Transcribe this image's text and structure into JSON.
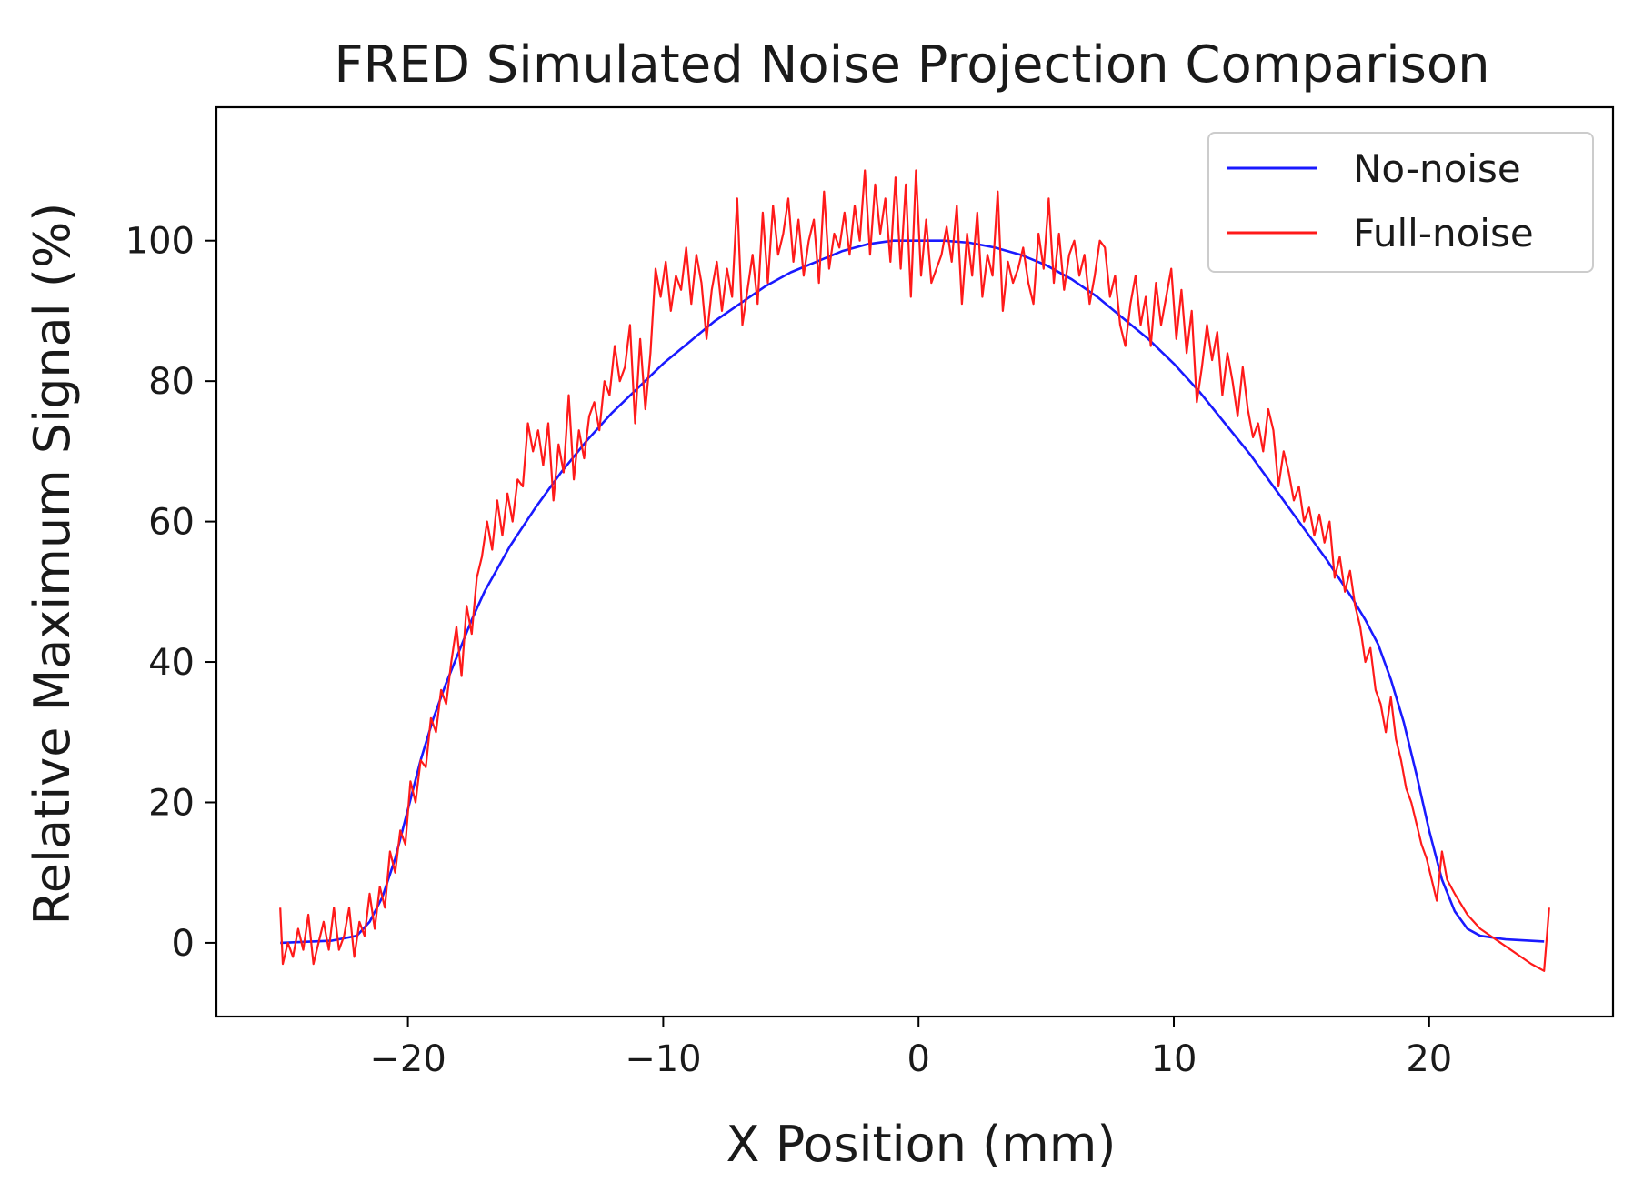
{
  "chart_data": {
    "type": "line",
    "title": "FRED Simulated Noise Projection Comparison",
    "xlabel": "X Position (mm)",
    "ylabel": "Relative Maximum Signal (%)",
    "xlim": [
      -27.5,
      27.2
    ],
    "ylim": [
      -10.5,
      119
    ],
    "xticks": [
      -20,
      -10,
      0,
      10,
      20
    ],
    "xtick_labels": [
      "−20",
      "−10",
      "0",
      "10",
      "20"
    ],
    "yticks": [
      0,
      20,
      40,
      60,
      80,
      100
    ],
    "ytick_labels": [
      "0",
      "20",
      "40",
      "60",
      "80",
      "100"
    ],
    "grid": false,
    "legend_position": "top-right",
    "series": [
      {
        "name": "No-noise",
        "color": "#1a1aff",
        "points": [
          [
            -25,
            0
          ],
          [
            -23,
            0.3
          ],
          [
            -22,
            1
          ],
          [
            -21.5,
            3
          ],
          [
            -21,
            6.5
          ],
          [
            -20.5,
            12
          ],
          [
            -20,
            19
          ],
          [
            -19.5,
            26
          ],
          [
            -19,
            32
          ],
          [
            -18.5,
            37
          ],
          [
            -18,
            41.5
          ],
          [
            -17.5,
            46
          ],
          [
            -17,
            50
          ],
          [
            -16,
            56.5
          ],
          [
            -15,
            62
          ],
          [
            -14,
            67
          ],
          [
            -13,
            71.5
          ],
          [
            -12,
            75.5
          ],
          [
            -11,
            79
          ],
          [
            -10,
            82.5
          ],
          [
            -9,
            85.5
          ],
          [
            -8,
            88.5
          ],
          [
            -7,
            91
          ],
          [
            -6,
            93.5
          ],
          [
            -5,
            95.5
          ],
          [
            -4,
            97
          ],
          [
            -3,
            98.5
          ],
          [
            -2,
            99.5
          ],
          [
            -1,
            100
          ],
          [
            0,
            100
          ],
          [
            1,
            100
          ],
          [
            2,
            99.7
          ],
          [
            3,
            99
          ],
          [
            4,
            98
          ],
          [
            5,
            96.5
          ],
          [
            6,
            94.5
          ],
          [
            7,
            92
          ],
          [
            8,
            89
          ],
          [
            9,
            86
          ],
          [
            10,
            82.5
          ],
          [
            11,
            78.5
          ],
          [
            12,
            74
          ],
          [
            13,
            69.5
          ],
          [
            14,
            64.5
          ],
          [
            15,
            59.5
          ],
          [
            16,
            54.5
          ],
          [
            17,
            49
          ],
          [
            17.5,
            46
          ],
          [
            18,
            42.5
          ],
          [
            18.5,
            37.5
          ],
          [
            19,
            31.5
          ],
          [
            19.5,
            24
          ],
          [
            20,
            16
          ],
          [
            20.5,
            9
          ],
          [
            21,
            4.5
          ],
          [
            21.5,
            2
          ],
          [
            22,
            1
          ],
          [
            23,
            0.5
          ],
          [
            24.5,
            0.2
          ]
        ]
      },
      {
        "name": "Full-noise",
        "color": "#ff1a1a",
        "points": [
          [
            -25,
            5
          ],
          [
            -24.9,
            -3
          ],
          [
            -24.7,
            0
          ],
          [
            -24.5,
            -2
          ],
          [
            -24.3,
            2
          ],
          [
            -24.1,
            -1
          ],
          [
            -23.9,
            4
          ],
          [
            -23.7,
            -3
          ],
          [
            -23.5,
            0
          ],
          [
            -23.3,
            3
          ],
          [
            -23.1,
            -1
          ],
          [
            -22.9,
            5
          ],
          [
            -22.7,
            -1
          ],
          [
            -22.5,
            1
          ],
          [
            -22.3,
            5
          ],
          [
            -22.1,
            -2
          ],
          [
            -21.9,
            3
          ],
          [
            -21.7,
            1
          ],
          [
            -21.5,
            7
          ],
          [
            -21.3,
            2
          ],
          [
            -21.1,
            8
          ],
          [
            -20.9,
            5
          ],
          [
            -20.7,
            13
          ],
          [
            -20.5,
            10
          ],
          [
            -20.3,
            16
          ],
          [
            -20.1,
            14
          ],
          [
            -19.9,
            23
          ],
          [
            -19.7,
            20
          ],
          [
            -19.5,
            26
          ],
          [
            -19.3,
            25
          ],
          [
            -19.1,
            32
          ],
          [
            -18.9,
            30
          ],
          [
            -18.7,
            36
          ],
          [
            -18.5,
            34
          ],
          [
            -18.3,
            40
          ],
          [
            -18.1,
            45
          ],
          [
            -17.9,
            38
          ],
          [
            -17.7,
            48
          ],
          [
            -17.5,
            44
          ],
          [
            -17.3,
            52
          ],
          [
            -17.1,
            55
          ],
          [
            -16.9,
            60
          ],
          [
            -16.7,
            56
          ],
          [
            -16.5,
            63
          ],
          [
            -16.3,
            58
          ],
          [
            -16.1,
            64
          ],
          [
            -15.9,
            60
          ],
          [
            -15.7,
            66
          ],
          [
            -15.5,
            65
          ],
          [
            -15.3,
            74
          ],
          [
            -15.1,
            70
          ],
          [
            -14.9,
            73
          ],
          [
            -14.7,
            68
          ],
          [
            -14.5,
            74
          ],
          [
            -14.3,
            63
          ],
          [
            -14.1,
            71
          ],
          [
            -13.9,
            67
          ],
          [
            -13.7,
            78
          ],
          [
            -13.5,
            66
          ],
          [
            -13.3,
            73
          ],
          [
            -13.1,
            69
          ],
          [
            -12.9,
            75
          ],
          [
            -12.7,
            77
          ],
          [
            -12.5,
            73
          ],
          [
            -12.3,
            80
          ],
          [
            -12.1,
            78
          ],
          [
            -11.9,
            85
          ],
          [
            -11.7,
            80
          ],
          [
            -11.5,
            82
          ],
          [
            -11.3,
            88
          ],
          [
            -11.1,
            74
          ],
          [
            -10.9,
            86
          ],
          [
            -10.7,
            76
          ],
          [
            -10.5,
            84
          ],
          [
            -10.3,
            96
          ],
          [
            -10.1,
            92
          ],
          [
            -9.9,
            97
          ],
          [
            -9.7,
            90
          ],
          [
            -9.5,
            95
          ],
          [
            -9.3,
            93
          ],
          [
            -9.1,
            99
          ],
          [
            -8.9,
            91
          ],
          [
            -8.7,
            98
          ],
          [
            -8.5,
            94
          ],
          [
            -8.3,
            86
          ],
          [
            -8.1,
            93
          ],
          [
            -7.9,
            97
          ],
          [
            -7.7,
            90
          ],
          [
            -7.5,
            96
          ],
          [
            -7.3,
            92
          ],
          [
            -7.1,
            106
          ],
          [
            -6.9,
            88
          ],
          [
            -6.7,
            93
          ],
          [
            -6.5,
            98
          ],
          [
            -6.3,
            91
          ],
          [
            -6.1,
            104
          ],
          [
            -5.9,
            94
          ],
          [
            -5.7,
            105
          ],
          [
            -5.5,
            98
          ],
          [
            -5.3,
            101
          ],
          [
            -5.1,
            106
          ],
          [
            -4.9,
            97
          ],
          [
            -4.7,
            103
          ],
          [
            -4.5,
            95
          ],
          [
            -4.3,
            100
          ],
          [
            -4.1,
            103
          ],
          [
            -3.9,
            94
          ],
          [
            -3.7,
            107
          ],
          [
            -3.5,
            96
          ],
          [
            -3.3,
            101
          ],
          [
            -3.1,
            99
          ],
          [
            -2.9,
            104
          ],
          [
            -2.7,
            98
          ],
          [
            -2.5,
            105
          ],
          [
            -2.3,
            100
          ],
          [
            -2.1,
            110
          ],
          [
            -1.9,
            98
          ],
          [
            -1.7,
            108
          ],
          [
            -1.5,
            101
          ],
          [
            -1.3,
            106
          ],
          [
            -1.1,
            97
          ],
          [
            -0.9,
            109
          ],
          [
            -0.7,
            96
          ],
          [
            -0.5,
            108
          ],
          [
            -0.3,
            92
          ],
          [
            -0.1,
            110
          ],
          [
            0.1,
            95
          ],
          [
            0.3,
            103
          ],
          [
            0.5,
            94
          ],
          [
            0.7,
            96
          ],
          [
            0.9,
            98
          ],
          [
            1.1,
            102
          ],
          [
            1.3,
            97
          ],
          [
            1.5,
            105
          ],
          [
            1.7,
            91
          ],
          [
            1.9,
            101
          ],
          [
            2.1,
            95
          ],
          [
            2.3,
            104
          ],
          [
            2.5,
            92
          ],
          [
            2.7,
            98
          ],
          [
            2.9,
            95
          ],
          [
            3.1,
            107
          ],
          [
            3.3,
            90
          ],
          [
            3.5,
            97
          ],
          [
            3.7,
            94
          ],
          [
            3.9,
            96
          ],
          [
            4.1,
            99
          ],
          [
            4.3,
            94
          ],
          [
            4.5,
            91
          ],
          [
            4.7,
            101
          ],
          [
            4.9,
            96
          ],
          [
            5.1,
            106
          ],
          [
            5.3,
            94
          ],
          [
            5.5,
            101
          ],
          [
            5.7,
            93
          ],
          [
            5.9,
            98
          ],
          [
            6.1,
            100
          ],
          [
            6.3,
            95
          ],
          [
            6.5,
            98
          ],
          [
            6.7,
            91
          ],
          [
            6.9,
            95
          ],
          [
            7.1,
            100
          ],
          [
            7.3,
            99
          ],
          [
            7.5,
            92
          ],
          [
            7.7,
            95
          ],
          [
            7.9,
            88
          ],
          [
            8.1,
            85
          ],
          [
            8.3,
            91
          ],
          [
            8.5,
            95
          ],
          [
            8.7,
            88
          ],
          [
            8.9,
            92
          ],
          [
            9.1,
            85
          ],
          [
            9.3,
            94
          ],
          [
            9.5,
            88
          ],
          [
            9.7,
            92
          ],
          [
            9.9,
            96
          ],
          [
            10.1,
            86
          ],
          [
            10.3,
            93
          ],
          [
            10.5,
            84
          ],
          [
            10.7,
            90
          ],
          [
            10.9,
            77
          ],
          [
            11.1,
            82
          ],
          [
            11.3,
            88
          ],
          [
            11.5,
            83
          ],
          [
            11.7,
            87
          ],
          [
            11.9,
            78
          ],
          [
            12.1,
            84
          ],
          [
            12.3,
            80
          ],
          [
            12.5,
            75
          ],
          [
            12.7,
            82
          ],
          [
            12.9,
            76
          ],
          [
            13.1,
            72
          ],
          [
            13.3,
            74
          ],
          [
            13.5,
            70
          ],
          [
            13.7,
            76
          ],
          [
            13.9,
            73
          ],
          [
            14.1,
            65
          ],
          [
            14.3,
            70
          ],
          [
            14.5,
            67
          ],
          [
            14.7,
            63
          ],
          [
            14.9,
            65
          ],
          [
            15.1,
            60
          ],
          [
            15.3,
            62
          ],
          [
            15.5,
            58
          ],
          [
            15.7,
            61
          ],
          [
            15.9,
            57
          ],
          [
            16.1,
            60
          ],
          [
            16.3,
            52
          ],
          [
            16.5,
            55
          ],
          [
            16.7,
            50
          ],
          [
            16.9,
            53
          ],
          [
            17.1,
            48
          ],
          [
            17.3,
            45
          ],
          [
            17.5,
            40
          ],
          [
            17.7,
            42
          ],
          [
            17.9,
            36
          ],
          [
            18.1,
            34
          ],
          [
            18.3,
            30
          ],
          [
            18.5,
            35
          ],
          [
            18.7,
            29
          ],
          [
            18.9,
            26
          ],
          [
            19.1,
            22
          ],
          [
            19.3,
            20
          ],
          [
            19.5,
            17
          ],
          [
            19.7,
            14
          ],
          [
            19.9,
            12
          ],
          [
            20.1,
            9
          ],
          [
            20.3,
            6
          ],
          [
            20.5,
            13
          ],
          [
            20.7,
            9
          ],
          [
            21,
            7
          ],
          [
            21.5,
            4
          ],
          [
            22,
            2
          ],
          [
            23,
            -0.5
          ],
          [
            24,
            -3
          ],
          [
            24.5,
            -4
          ],
          [
            24.7,
            5
          ]
        ]
      }
    ]
  }
}
